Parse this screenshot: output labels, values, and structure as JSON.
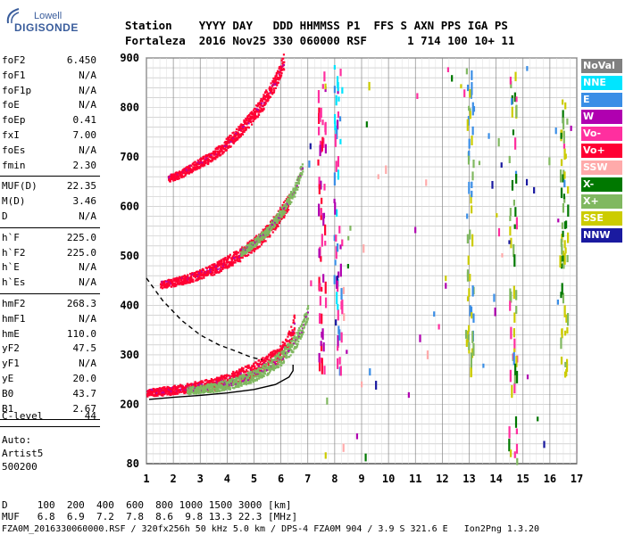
{
  "brand": {
    "line1": "Lowell",
    "line2": "DIGISONDE"
  },
  "header": {
    "line1": "Station    YYYY DAY   DDD HHMMSS P1  FFS S AXN PPS IGA PS",
    "line2": "Fortaleza  2016 Nov25 330 060000 RSF      1 714 100 10+ 11"
  },
  "params_group1": [
    {
      "name": "foF2",
      "value": "6.450"
    },
    {
      "name": "foF1",
      "value": "N/A"
    },
    {
      "name": "foF1p",
      "value": "N/A"
    },
    {
      "name": "foE",
      "value": "N/A"
    },
    {
      "name": "foEp",
      "value": "0.41"
    },
    {
      "name": "fxI",
      "value": "7.00"
    },
    {
      "name": "foEs",
      "value": "N/A"
    },
    {
      "name": "fmin",
      "value": "2.30"
    }
  ],
  "params_group2": [
    {
      "name": "MUF(D)",
      "value": "22.35"
    },
    {
      "name": "M(D)",
      "value": "3.46"
    },
    {
      "name": "D",
      "value": "N/A"
    }
  ],
  "params_group3": [
    {
      "name": "h`F",
      "value": "225.0"
    },
    {
      "name": "h`F2",
      "value": "225.0"
    },
    {
      "name": "h`E",
      "value": "N/A"
    },
    {
      "name": "h`Es",
      "value": "N/A"
    }
  ],
  "params_group4": [
    {
      "name": "hmF2",
      "value": "268.3"
    },
    {
      "name": "hmF1",
      "value": "N/A"
    },
    {
      "name": "hmE",
      "value": "110.0"
    },
    {
      "name": "yF2",
      "value": "47.5"
    },
    {
      "name": "yF1",
      "value": "N/A"
    },
    {
      "name": "yE",
      "value": "20.0"
    },
    {
      "name": "B0",
      "value": "43.7"
    },
    {
      "name": "B1",
      "value": "2.67"
    }
  ],
  "clevel": {
    "name": "C-level",
    "value": "44"
  },
  "auto": {
    "line1": "Auto:",
    "line2": "Artist5",
    "line3": "500200"
  },
  "legend": [
    {
      "label": "NoVal",
      "bg": "#808080",
      "fg": "#ffffff"
    },
    {
      "label": "NNE",
      "bg": "#00e5ff",
      "fg": "#ffffff"
    },
    {
      "label": "E",
      "bg": "#3a8ee6",
      "fg": "#ffffff"
    },
    {
      "label": "W",
      "bg": "#b000b0",
      "fg": "#ffffff"
    },
    {
      "label": "Vo-",
      "bg": "#ff2f9f",
      "fg": "#ffffff"
    },
    {
      "label": "Vo+",
      "bg": "#ff0033",
      "fg": "#ffffff"
    },
    {
      "label": "SSW",
      "bg": "#ffaaaa",
      "fg": "#ffffff"
    },
    {
      "label": "X-",
      "bg": "#007800",
      "fg": "#ffffff"
    },
    {
      "label": "X+",
      "bg": "#80b860",
      "fg": "#ffffff"
    },
    {
      "label": "SSE",
      "bg": "#cccc00",
      "fg": "#ffffff"
    },
    {
      "label": "NNW",
      "bg": "#1a1aa0",
      "fg": "#ffffff"
    }
  ],
  "bottom": {
    "d_line": "D     100  200  400  600  800 1000 1500 3000 [km]",
    "muf_line": "MUF   6.8  6.9  7.2  7.8  8.6  9.8 13.3 22.3 [MHz]",
    "footer": "FZA0M_2016330060000.RSF / 320fx256h 50 kHz 5.0 km / DPS-4 FZA0M 904 / 3.9 S 321.6 E   Ion2Png 1.3.20"
  },
  "chart_data": {
    "type": "scatter",
    "title": "",
    "xlabel": "",
    "ylabel": "",
    "xlim": [
      1,
      17
    ],
    "ylim": [
      80,
      900
    ],
    "x_ticks": [
      1,
      2,
      3,
      4,
      5,
      6,
      7,
      8,
      9,
      10,
      11,
      12,
      13,
      14,
      15,
      16,
      17
    ],
    "y_ticks": [
      80,
      200,
      300,
      400,
      500,
      600,
      700,
      800,
      900
    ],
    "grid": true,
    "traces": [
      {
        "name": "F2 O-trace",
        "color": "#ff0033",
        "x": [
          1.0,
          1.5,
          2.0,
          2.5,
          3.0,
          3.5,
          4.0,
          4.5,
          5.0,
          5.5,
          5.9,
          6.2,
          6.4,
          6.5
        ],
        "y": [
          222,
          224,
          227,
          230,
          234,
          238,
          245,
          255,
          265,
          280,
          295,
          315,
          340,
          370
        ]
      },
      {
        "name": "F2 X-trace",
        "color": "#80b860",
        "x": [
          2.5,
          3.0,
          3.5,
          4.0,
          4.5,
          5.0,
          5.5,
          6.0,
          6.5,
          6.8,
          7.0
        ],
        "y": [
          226,
          229,
          232,
          237,
          245,
          255,
          270,
          290,
          320,
          350,
          390
        ]
      },
      {
        "name": "2nd hop O",
        "color": "#ff0033",
        "x": [
          1.5,
          2.0,
          2.5,
          3.0,
          3.5,
          4.0,
          4.5,
          5.0,
          5.5,
          6.0,
          6.3
        ],
        "y": [
          440,
          445,
          452,
          460,
          470,
          485,
          500,
          520,
          545,
          580,
          610
        ]
      },
      {
        "name": "2nd hop X",
        "color": "#80b860",
        "x": [
          4.5,
          5.0,
          5.5,
          6.0,
          6.5,
          6.8
        ],
        "y": [
          505,
          525,
          550,
          585,
          630,
          680
        ]
      },
      {
        "name": "3rd hop",
        "color": "#ff0033",
        "x": [
          1.8,
          2.3,
          2.8,
          3.3,
          3.8,
          4.3,
          4.8,
          5.3,
          5.8,
          6.1
        ],
        "y": [
          655,
          665,
          680,
          695,
          715,
          740,
          770,
          805,
          850,
          890
        ]
      }
    ],
    "profile_solid": {
      "x": [
        1.1,
        2.0,
        3.0,
        4.0,
        5.0,
        5.8,
        6.3,
        6.45,
        6.45
      ],
      "y": [
        210,
        214,
        218,
        223,
        230,
        240,
        255,
        268,
        280
      ]
    },
    "profile_dashed": {
      "x": [
        1.0,
        1.6,
        2.3,
        3.0,
        3.7,
        4.3,
        4.9,
        5.3
      ],
      "y": [
        455,
        410,
        370,
        340,
        320,
        308,
        295,
        290
      ]
    }
  }
}
